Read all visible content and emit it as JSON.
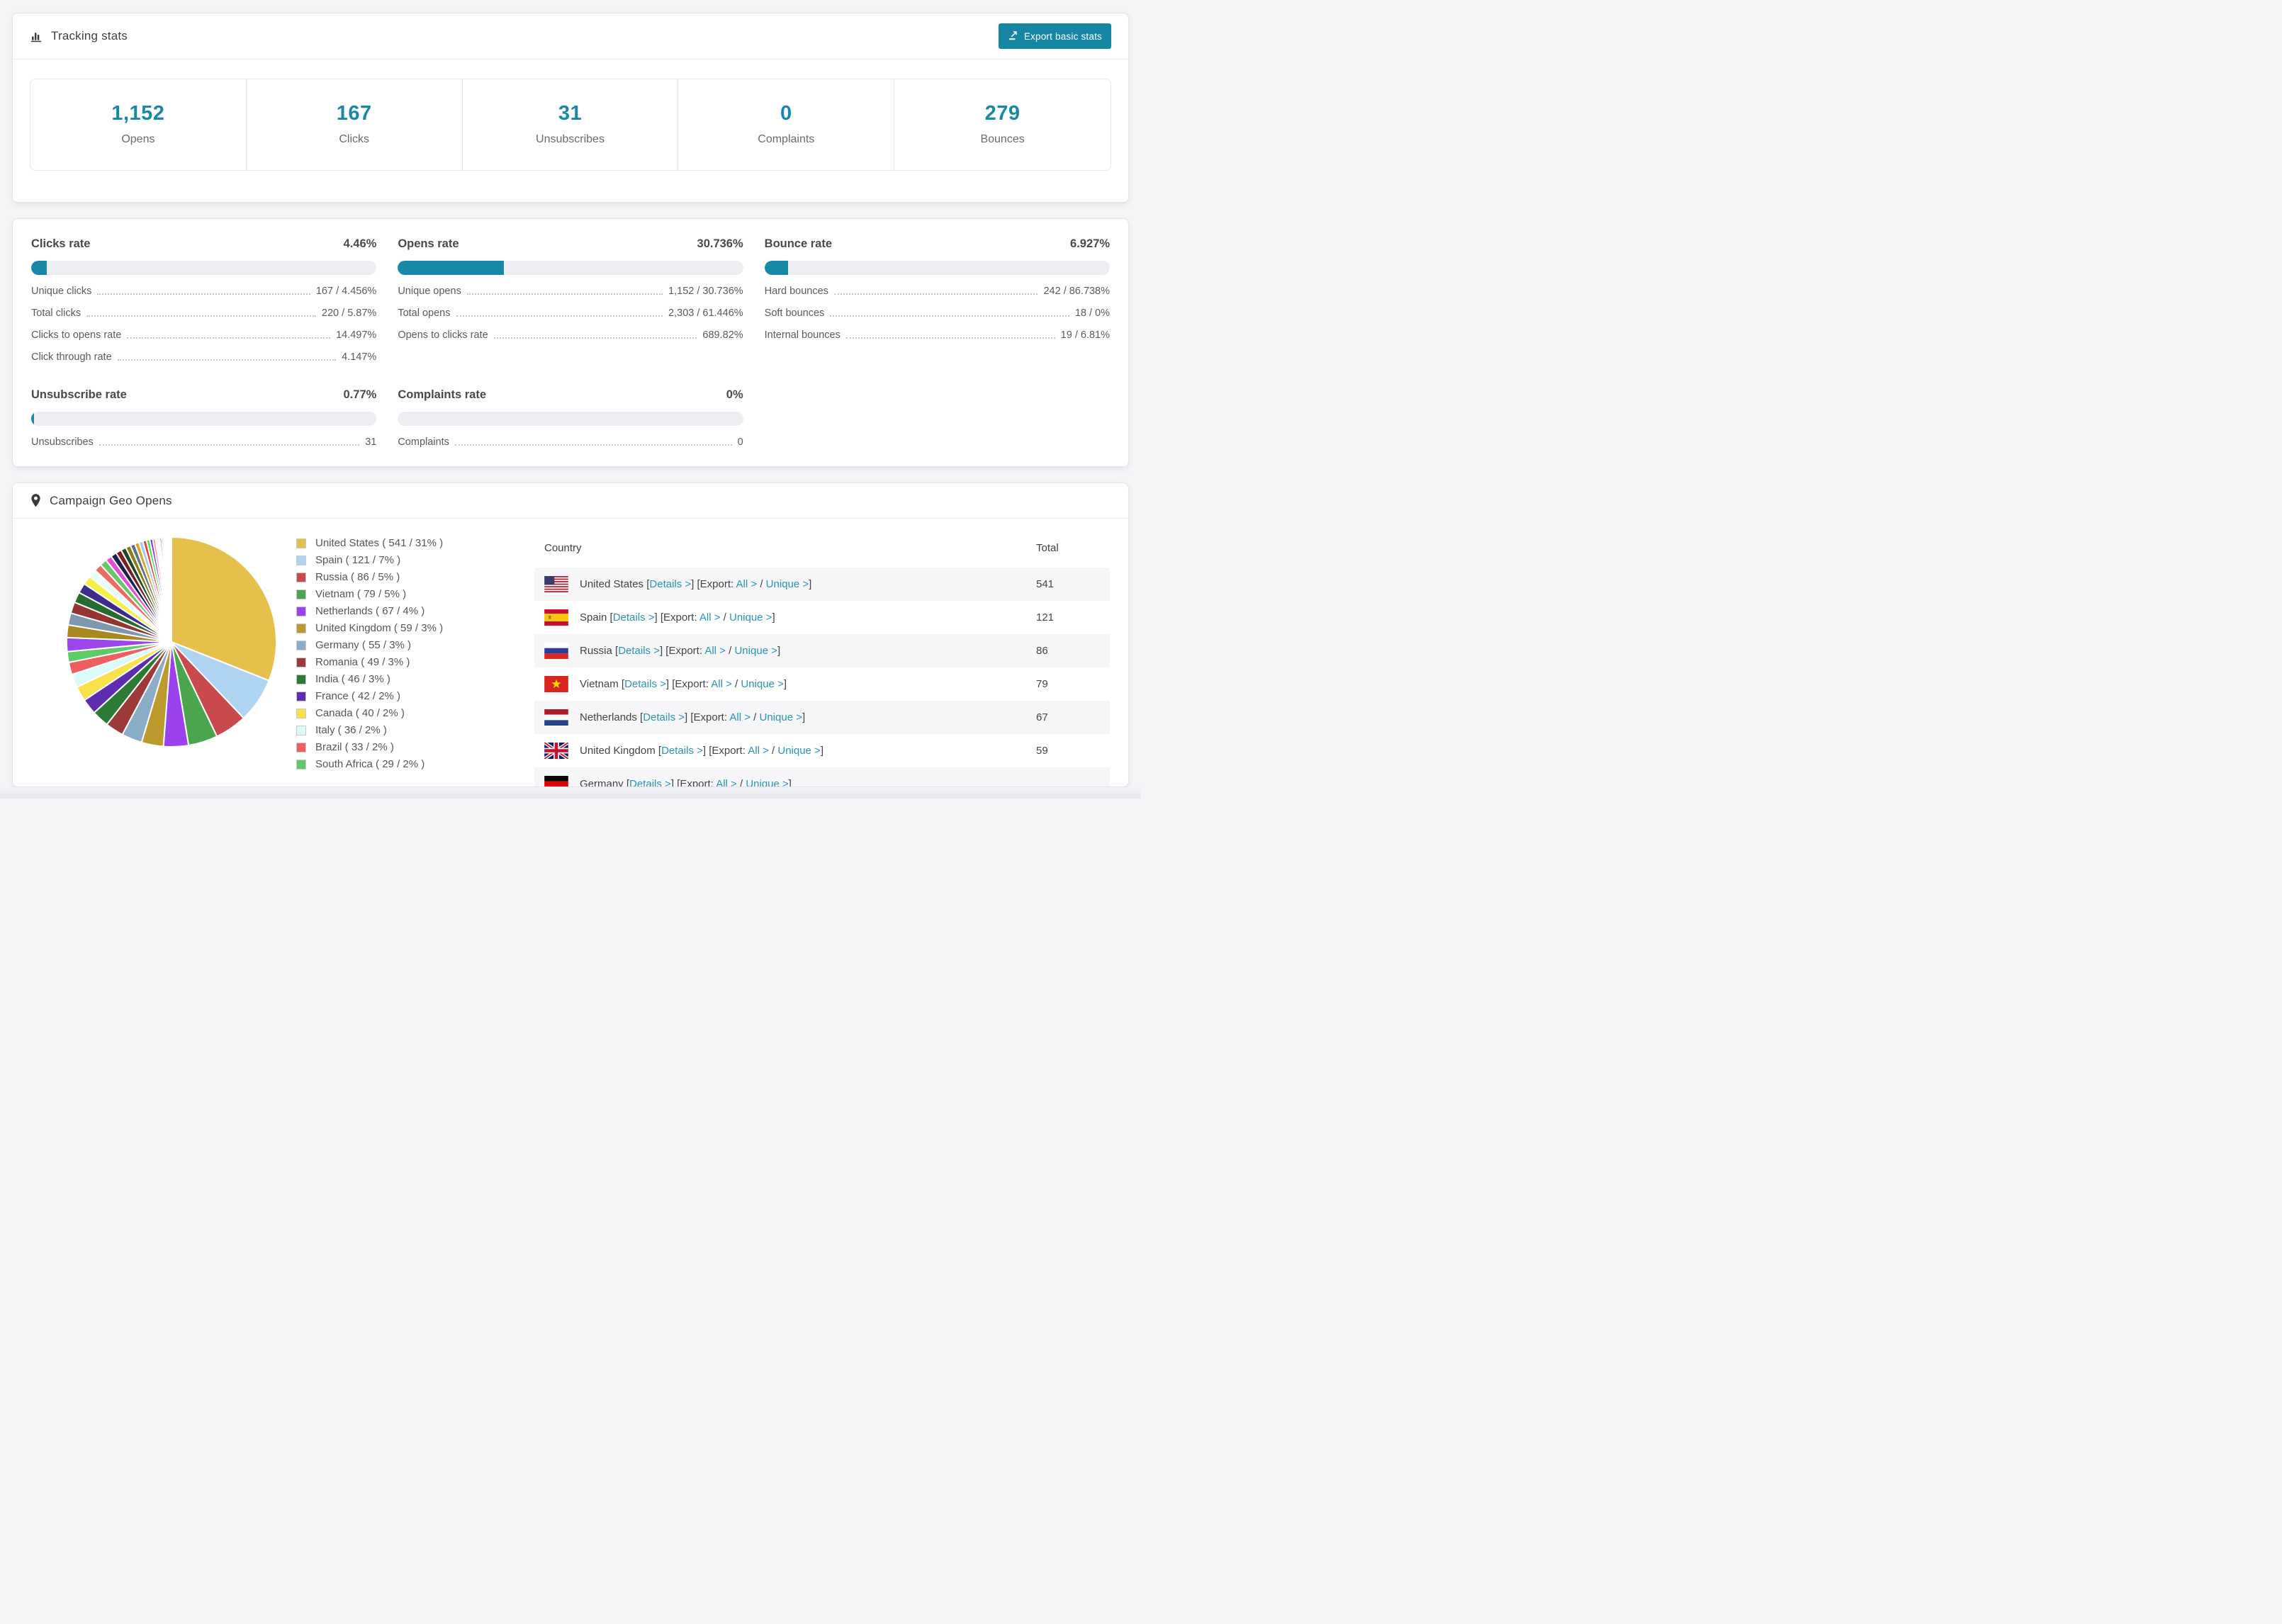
{
  "colors": {
    "accent": "#1789a6",
    "link": "#2b93b4",
    "bar_track": "#eceef1",
    "row_stripe": "#f6f6f8",
    "page_bg": "#f4f5f7"
  },
  "tracking": {
    "title": "Tracking stats",
    "export_button": "Export basic stats",
    "stats": [
      {
        "value": "1,152",
        "label": "Opens"
      },
      {
        "value": "167",
        "label": "Clicks"
      },
      {
        "value": "31",
        "label": "Unsubscribes"
      },
      {
        "value": "0",
        "label": "Complaints"
      },
      {
        "value": "279",
        "label": "Bounces"
      }
    ]
  },
  "rates": {
    "blocks": [
      {
        "slug": "clicks-rate",
        "title": "Clicks rate",
        "pct": "4.46%",
        "fill_pct": 4.46,
        "rows": [
          {
            "label": "Unique clicks",
            "value": "167 / 4.456%"
          },
          {
            "label": "Total clicks",
            "value": "220 / 5.87%"
          },
          {
            "label": "Clicks to opens rate",
            "value": "14.497%"
          },
          {
            "label": "Click through rate",
            "value": "4.147%"
          }
        ]
      },
      {
        "slug": "opens-rate",
        "title": "Opens rate",
        "pct": "30.736%",
        "fill_pct": 30.736,
        "rows": [
          {
            "label": "Unique opens",
            "value": "1,152 / 30.736%"
          },
          {
            "label": "Total opens",
            "value": "2,303 / 61.446%"
          },
          {
            "label": "Opens to clicks rate",
            "value": "689.82%"
          }
        ]
      },
      {
        "slug": "bounce-rate",
        "title": "Bounce rate",
        "pct": "6.927%",
        "fill_pct": 6.927,
        "rows": [
          {
            "label": "Hard bounces",
            "value": "242 / 86.738%"
          },
          {
            "label": "Soft bounces",
            "value": "18 / 0%"
          },
          {
            "label": "Internal bounces",
            "value": "19 / 6.81%"
          }
        ]
      },
      {
        "slug": "unsubscribe-rate",
        "title": "Unsubscribe rate",
        "pct": "0.77%",
        "fill_pct": 0.77,
        "rows": [
          {
            "label": "Unsubscribes",
            "value": "31"
          }
        ]
      },
      {
        "slug": "complaints-rate",
        "title": "Complaints rate",
        "pct": "0%",
        "fill_pct": 0,
        "rows": [
          {
            "label": "Complaints",
            "value": "0"
          }
        ]
      }
    ]
  },
  "geo": {
    "title": "Campaign Geo Opens",
    "table": {
      "headers": [
        "Country",
        "Total"
      ],
      "links": {
        "details": "Details >",
        "export_prefix": "Export:",
        "all": "All >",
        "unique": "Unique >"
      },
      "rows": [
        {
          "code": "us",
          "name": "United States",
          "total": "541"
        },
        {
          "code": "es",
          "name": "Spain",
          "total": "121"
        },
        {
          "code": "ru",
          "name": "Russia",
          "total": "86"
        },
        {
          "code": "vn",
          "name": "Vietnam",
          "total": "79"
        },
        {
          "code": "nl",
          "name": "Netherlands",
          "total": "67"
        },
        {
          "code": "gb",
          "name": "United Kingdom",
          "total": "59"
        },
        {
          "code": "de",
          "name": "Germany",
          "total": ""
        }
      ]
    }
  },
  "chart_data": {
    "type": "pie",
    "title": "Campaign Geo Opens",
    "legend_position": "right",
    "legend_format": "{label} ( {value} / {pct} )",
    "start_angle_deg": -90,
    "direction": "clockwise",
    "slices": [
      {
        "label": "United States",
        "value": 541,
        "pct": "31%",
        "color": "#e5c14c"
      },
      {
        "label": "Spain",
        "value": 121,
        "pct": "7%",
        "color": "#aed4f2"
      },
      {
        "label": "Russia",
        "value": 86,
        "pct": "5%",
        "color": "#c94a4c"
      },
      {
        "label": "Vietnam",
        "value": 79,
        "pct": "5%",
        "color": "#4aa54e"
      },
      {
        "label": "Netherlands",
        "value": 67,
        "pct": "4%",
        "color": "#9c41ee"
      },
      {
        "label": "United Kingdom",
        "value": 59,
        "pct": "3%",
        "color": "#bb9a2e"
      },
      {
        "label": "Germany",
        "value": 55,
        "pct": "3%",
        "color": "#8cadc9"
      },
      {
        "label": "Romania",
        "value": 49,
        "pct": "3%",
        "color": "#9c3a39"
      },
      {
        "label": "India",
        "value": 46,
        "pct": "3%",
        "color": "#2c7a35"
      },
      {
        "label": "France",
        "value": 42,
        "pct": "2%",
        "color": "#5e2cae"
      },
      {
        "label": "Canada",
        "value": 40,
        "pct": "2%",
        "color": "#f8e14b"
      },
      {
        "label": "Italy",
        "value": 36,
        "pct": "2%",
        "color": "#dbfbf9"
      },
      {
        "label": "Brazil",
        "value": 33,
        "pct": "2%",
        "color": "#ef5f5f"
      },
      {
        "label": "South Africa",
        "value": 29,
        "pct": "2%",
        "color": "#5fcb66"
      }
    ],
    "others": {
      "total": 462,
      "weights": [
        2.1,
        1.9,
        1.8,
        1.7,
        1.6,
        1.5,
        1.35,
        1.25,
        1.15,
        1.05,
        0.95,
        0.9,
        0.85,
        0.8,
        0.75,
        0.7,
        0.65,
        0.6,
        0.55,
        0.5,
        0.45,
        0.4,
        0.36,
        0.32,
        0.28,
        0.25,
        0.22,
        0.2,
        0.15,
        0.12,
        0.1,
        0.09,
        0.08,
        0.07,
        0.06,
        0.05,
        0.04,
        0.04
      ],
      "palette": [
        "#9b45ea",
        "#a8891f",
        "#7e97ad",
        "#96342f",
        "#276b30",
        "#3f2a8e",
        "#f5ef46",
        "#eafcfb",
        "#ef6a62",
        "#64c968",
        "#e24fd4",
        "#20204f",
        "#7c1f24",
        "#1d4a23",
        "#8a7d18",
        "#5d7184",
        "#d9a62c",
        "#a8c8e8",
        "#e8413c",
        "#49e05a",
        "#8833cc",
        "#f788d8",
        "#fdfbc8",
        "#eef6ff"
      ]
    }
  }
}
